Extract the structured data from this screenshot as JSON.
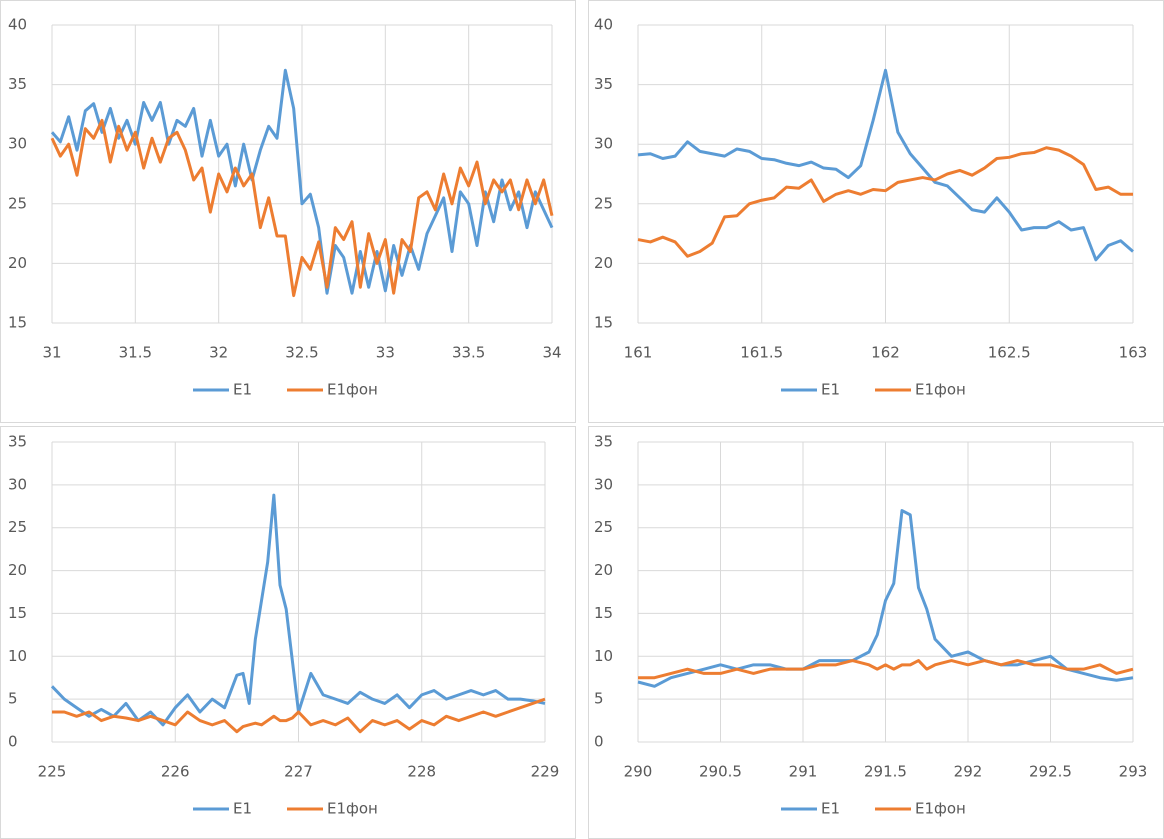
{
  "chart_data": [
    {
      "type": "line",
      "grid": true,
      "legend": "bottom",
      "x": [
        31,
        31.05,
        31.1,
        31.15,
        31.2,
        31.25,
        31.3,
        31.35,
        31.4,
        31.45,
        31.5,
        31.55,
        31.6,
        31.65,
        31.7,
        31.75,
        31.8,
        31.85,
        31.9,
        31.95,
        32,
        32.05,
        32.1,
        32.15,
        32.2,
        32.25,
        32.3,
        32.35,
        32.4,
        32.45,
        32.5,
        32.55,
        32.6,
        32.65,
        32.7,
        32.75,
        32.8,
        32.85,
        32.9,
        32.95,
        33,
        33.05,
        33.1,
        33.15,
        33.2,
        33.25,
        33.3,
        33.35,
        33.4,
        33.45,
        33.5,
        33.55,
        33.6,
        33.65,
        33.7,
        33.75,
        33.8,
        33.85,
        33.9,
        33.95,
        34
      ],
      "series": [
        {
          "name": "E1",
          "color": "#5b9bd5",
          "values": [
            31,
            30.2,
            32.3,
            29.5,
            32.8,
            33.4,
            31,
            33,
            30.5,
            32,
            30,
            33.5,
            32,
            33.5,
            30,
            32,
            31.5,
            33,
            29,
            32,
            29,
            30,
            26.5,
            30,
            27,
            29.5,
            31.5,
            30.5,
            36.2,
            33,
            25,
            25.8,
            23,
            17.5,
            21.5,
            20.5,
            17.5,
            21,
            18,
            21,
            17.7,
            21.5,
            19,
            21.5,
            19.5,
            22.5,
            24,
            25.5,
            21,
            26,
            25,
            21.5,
            26,
            23.5,
            27,
            24.5,
            26,
            23,
            26,
            24.5,
            23
          ]
        },
        {
          "name": "E1фон",
          "color": "#ed7d31",
          "values": [
            30.5,
            29,
            30,
            27.4,
            31.3,
            30.5,
            32,
            28.5,
            31.5,
            29.5,
            31,
            28,
            30.5,
            28.5,
            30.5,
            31,
            29.5,
            27,
            28,
            24.3,
            27.5,
            26,
            28,
            26.5,
            27.5,
            23,
            25.5,
            22.3,
            22.3,
            17.3,
            20.5,
            19.5,
            21.8,
            18,
            23,
            22,
            23.5,
            18,
            22.5,
            20,
            22,
            17.5,
            22,
            21,
            25.5,
            26,
            24.5,
            27.5,
            25,
            28,
            26.5,
            28.5,
            25,
            27,
            26,
            27,
            24.5,
            27,
            25,
            27,
            24
          ]
        }
      ],
      "xlim": [
        31,
        34
      ],
      "xticks": [
        31,
        31.5,
        32,
        32.5,
        33,
        33.5,
        34
      ],
      "ylim": [
        15,
        40
      ],
      "yticks": [
        15,
        20,
        25,
        30,
        35,
        40
      ]
    },
    {
      "type": "line",
      "grid": true,
      "legend": "bottom",
      "x": [
        161,
        161.05,
        161.1,
        161.15,
        161.2,
        161.25,
        161.3,
        161.35,
        161.4,
        161.45,
        161.5,
        161.55,
        161.6,
        161.65,
        161.7,
        161.75,
        161.8,
        161.85,
        161.9,
        161.95,
        162,
        162.05,
        162.1,
        162.15,
        162.2,
        162.25,
        162.3,
        162.35,
        162.4,
        162.45,
        162.5,
        162.55,
        162.6,
        162.65,
        162.7,
        162.75,
        162.8,
        162.85,
        162.9,
        162.95,
        163
      ],
      "series": [
        {
          "name": "E1",
          "color": "#5b9bd5",
          "values": [
            29.1,
            29.2,
            28.8,
            29,
            30.2,
            29.4,
            29.2,
            29,
            29.6,
            29.4,
            28.8,
            28.7,
            28.4,
            28.2,
            28.5,
            28,
            27.9,
            27.2,
            28.2,
            32,
            36.2,
            31,
            29.2,
            28,
            26.8,
            26.5,
            25.5,
            24.5,
            24.3,
            25.5,
            24.3,
            22.8,
            23,
            23,
            23.5,
            22.8,
            23,
            20.3,
            21.5,
            21.9,
            21
          ]
        },
        {
          "name": "E1фон",
          "color": "#ed7d31",
          "values": [
            22,
            21.8,
            22.2,
            21.8,
            20.6,
            21,
            21.7,
            23.9,
            24,
            25,
            25.3,
            25.5,
            26.4,
            26.3,
            27,
            25.2,
            25.8,
            26.1,
            25.8,
            26.2,
            26.1,
            26.8,
            27,
            27.2,
            27,
            27.5,
            27.8,
            27.4,
            28,
            28.8,
            28.9,
            29.2,
            29.3,
            29.7,
            29.5,
            29,
            28.3,
            26.2,
            26.4,
            25.8,
            25.8
          ]
        }
      ],
      "xlim": [
        161,
        163
      ],
      "xticks": [
        161,
        161.5,
        162,
        162.5,
        163
      ],
      "ylim": [
        15,
        40
      ],
      "yticks": [
        15,
        20,
        25,
        30,
        35,
        40
      ]
    },
    {
      "type": "line",
      "grid": true,
      "legend": "bottom",
      "x": [
        225,
        225.1,
        225.2,
        225.3,
        225.4,
        225.5,
        225.6,
        225.7,
        225.8,
        225.9,
        226,
        226.1,
        226.2,
        226.3,
        226.4,
        226.5,
        226.55,
        226.6,
        226.65,
        226.7,
        226.75,
        226.8,
        226.85,
        226.9,
        226.95,
        227,
        227.1,
        227.2,
        227.3,
        227.4,
        227.5,
        227.6,
        227.7,
        227.8,
        227.9,
        228,
        228.1,
        228.2,
        228.3,
        228.4,
        228.5,
        228.6,
        228.7,
        228.8,
        228.9,
        229
      ],
      "series": [
        {
          "name": "E1",
          "color": "#5b9bd5",
          "values": [
            6.5,
            5,
            4,
            3,
            3.8,
            3,
            4.5,
            2.5,
            3.5,
            2,
            4,
            5.5,
            3.5,
            5,
            4,
            7.8,
            8,
            4.5,
            12,
            16.5,
            21,
            28.8,
            18.3,
            15.5,
            9.5,
            3.5,
            8,
            5.5,
            5,
            4.5,
            5.8,
            5,
            4.5,
            5.5,
            4,
            5.5,
            6,
            5,
            5.5,
            6,
            5.5,
            6,
            5,
            5,
            4.8,
            4.5
          ]
        },
        {
          "name": "E1фон",
          "color": "#ed7d31",
          "values": [
            3.5,
            3.5,
            3,
            3.5,
            2.5,
            3,
            2.8,
            2.5,
            3,
            2.5,
            2,
            3.5,
            2.5,
            2,
            2.5,
            1.2,
            1.8,
            2,
            2.2,
            2,
            2.5,
            3,
            2.5,
            2.5,
            2.8,
            3.5,
            2,
            2.5,
            2,
            2.8,
            1.2,
            2.5,
            2,
            2.5,
            1.5,
            2.5,
            2,
            3,
            2.5,
            3,
            3.5,
            3,
            3.5,
            4,
            4.5,
            5
          ]
        }
      ],
      "xlim": [
        225,
        229
      ],
      "xticks": [
        225,
        226,
        227,
        228,
        229
      ],
      "ylim": [
        0,
        35
      ],
      "yticks": [
        0,
        5,
        10,
        15,
        20,
        25,
        30,
        35
      ]
    },
    {
      "type": "line",
      "grid": true,
      "legend": "bottom",
      "x": [
        290,
        290.1,
        290.2,
        290.3,
        290.4,
        290.5,
        290.6,
        290.7,
        290.8,
        290.9,
        291,
        291.1,
        291.2,
        291.3,
        291.4,
        291.45,
        291.5,
        291.55,
        291.6,
        291.65,
        291.7,
        291.75,
        291.8,
        291.9,
        292,
        292.1,
        292.2,
        292.3,
        292.4,
        292.5,
        292.6,
        292.7,
        292.8,
        292.9,
        293
      ],
      "series": [
        {
          "name": "E1",
          "color": "#5b9bd5",
          "values": [
            7,
            6.5,
            7.5,
            8,
            8.5,
            9,
            8.5,
            9,
            9,
            8.5,
            8.5,
            9.5,
            9.5,
            9.5,
            10.5,
            12.5,
            16.5,
            18.5,
            27,
            26.5,
            18,
            15.5,
            12,
            10,
            10.5,
            9.5,
            9,
            9,
            9.5,
            10,
            8.5,
            8,
            7.5,
            7.2,
            7.5
          ]
        },
        {
          "name": "E1фон",
          "color": "#ed7d31",
          "values": [
            7.5,
            7.5,
            8,
            8.5,
            8,
            8,
            8.5,
            8,
            8.5,
            8.5,
            8.5,
            9,
            9,
            9.5,
            9,
            8.5,
            9,
            8.5,
            9,
            9,
            9.5,
            8.5,
            9,
            9.5,
            9,
            9.5,
            9,
            9.5,
            9,
            9,
            8.5,
            8.5,
            9,
            8,
            8.5
          ]
        }
      ],
      "xlim": [
        290,
        293
      ],
      "xticks": [
        290,
        290.5,
        291,
        291.5,
        292,
        292.5,
        293
      ],
      "ylim": [
        0,
        35
      ],
      "yticks": [
        0,
        5,
        10,
        15,
        20,
        25,
        30,
        35
      ]
    }
  ]
}
